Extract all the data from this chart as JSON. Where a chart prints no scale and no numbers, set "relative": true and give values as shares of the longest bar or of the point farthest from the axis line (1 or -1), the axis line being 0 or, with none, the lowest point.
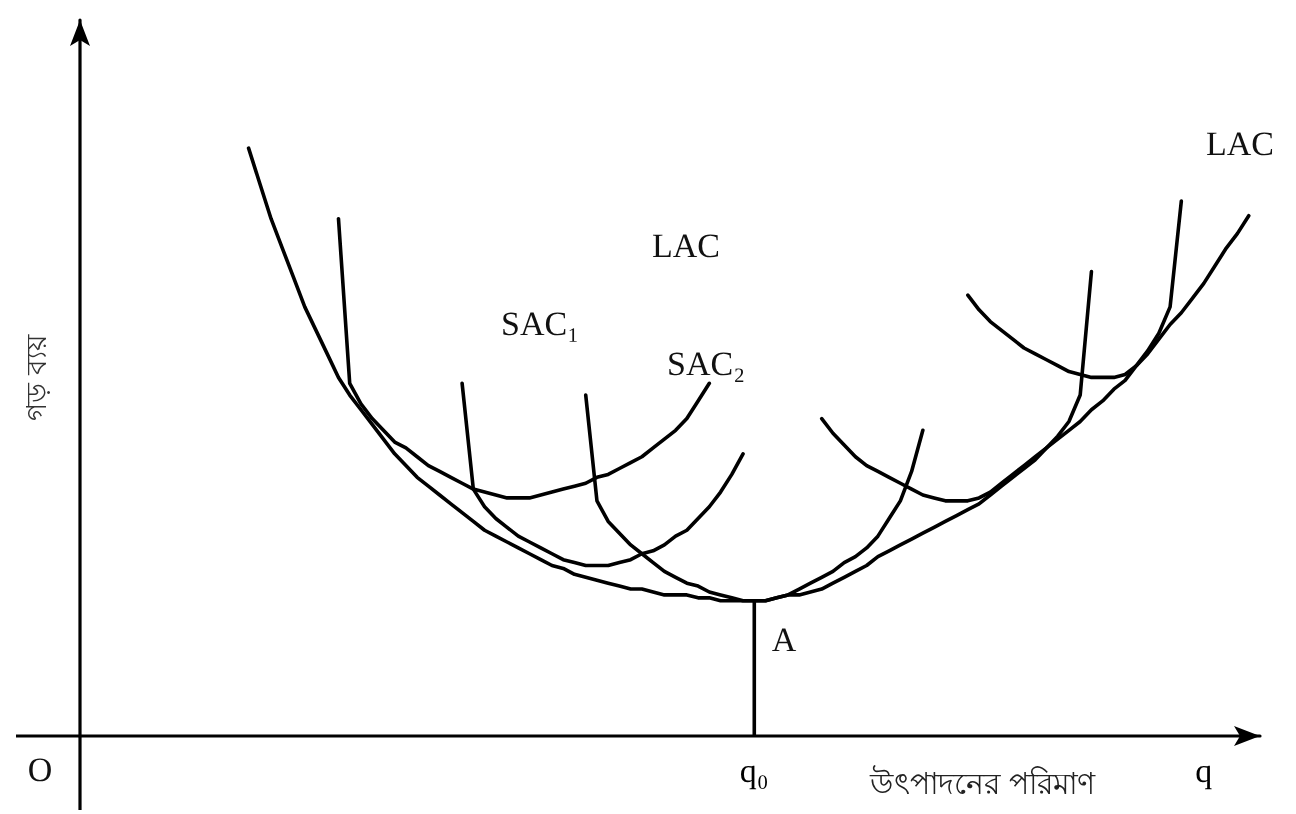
{
  "chart_data": {
    "type": "line",
    "relative": true,
    "ylabel": "গড় ব্যয়",
    "xlabel": "উৎপাদনের পরিমাণ",
    "categories": [
      null,
      null,
      null,
      null,
      null,
      null,
      null,
      null,
      null,
      null,
      null,
      null,
      null,
      null,
      null,
      null,
      null,
      null,
      null,
      null,
      null,
      null,
      null,
      null,
      null,
      null,
      null,
      null,
      null,
      null,
      null,
      null,
      null,
      null,
      null,
      null,
      null,
      null,
      null,
      null,
      null,
      null,
      null,
      null,
      null,
      null,
      null,
      null,
      null,
      null,
      null,
      null,
      null,
      null,
      null,
      null,
      null,
      null,
      null,
      null,
      "q₀",
      null,
      null,
      null,
      null,
      null,
      null,
      null,
      null,
      null,
      null,
      null,
      null,
      null,
      null,
      null,
      null,
      null,
      null,
      null,
      null,
      null,
      null,
      null,
      null,
      null,
      null,
      null,
      null,
      null,
      null,
      null,
      null,
      null,
      null,
      null,
      null,
      null,
      null,
      null,
      "q",
      null,
      null,
      null,
      null,
      null
    ],
    "annotations": [
      "SAC₁",
      "LAC",
      "SAC₂",
      "LAC",
      "A",
      "O"
    ],
    "series": [
      {
        "color": "#000000",
        "values": [
          null,
          null,
          null,
          null,
          null,
          null,
          null,
          null,
          null,
          null,
          null,
          null,
          null,
          null,
          null,
          1,
          0.94,
          0.88,
          0.83,
          0.78,
          0.73,
          0.69,
          0.65,
          0.61,
          0.58,
          0.555,
          0.53,
          0.505,
          0.48,
          0.46,
          0.44,
          0.425,
          0.41,
          0.395,
          0.38,
          0.365,
          0.35,
          0.34,
          0.33,
          0.32,
          0.31,
          0.3,
          0.29,
          0.285,
          0.275,
          0.27,
          0.265,
          0.26,
          0.255,
          0.25,
          0.25,
          0.245,
          0.24,
          0.24,
          0.24,
          0.235,
          0.235,
          0.23,
          0.23,
          0.23,
          0.23,
          0.23,
          0.235,
          0.24,
          0.24,
          0.245,
          0.25,
          0.26,
          0.27,
          0.28,
          0.29,
          0.305,
          0.315,
          0.325,
          0.335,
          0.345,
          0.355,
          0.365,
          0.375,
          0.385,
          0.395,
          0.41,
          0.425,
          0.44,
          0.455,
          0.47,
          0.49,
          0.505,
          0.52,
          0.535,
          0.555,
          0.57,
          0.59,
          0.605,
          0.63,
          0.65,
          0.675,
          0.7,
          0.72,
          0.745,
          0.77,
          0.8,
          0.83,
          0.855,
          0.885,
          null
        ]
      },
      {
        "color": "#000000",
        "values": [
          null,
          null,
          null,
          null,
          null,
          null,
          null,
          null,
          null,
          null,
          null,
          null,
          null,
          null,
          null,
          null,
          null,
          null,
          null,
          null,
          null,
          null,
          null,
          0.88,
          0.6,
          0.565,
          0.54,
          0.52,
          0.5,
          0.49,
          0.475,
          0.46,
          0.45,
          0.44,
          0.43,
          0.42,
          0.415,
          0.41,
          0.405,
          0.405,
          0.405,
          0.41,
          0.415,
          0.42,
          0.425,
          0.43,
          0.44,
          0.445,
          0.455,
          0.465,
          0.475,
          0.49,
          0.505,
          0.52,
          0.54,
          0.57,
          0.6,
          null,
          null,
          null,
          null,
          null,
          null,
          null,
          null,
          null,
          null,
          null,
          null,
          null,
          null,
          null,
          null,
          null,
          null,
          null,
          null,
          null,
          null,
          null,
          null,
          null,
          null,
          null,
          null,
          null,
          null,
          null,
          null,
          null,
          null,
          null,
          null,
          null,
          null,
          null,
          null,
          null,
          null,
          null,
          null,
          null,
          null,
          null,
          null,
          null
        ]
      },
      {
        "color": "#000000",
        "values": [
          null,
          null,
          null,
          null,
          null,
          null,
          null,
          null,
          null,
          null,
          null,
          null,
          null,
          null,
          null,
          null,
          null,
          null,
          null,
          null,
          null,
          null,
          null,
          null,
          null,
          null,
          null,
          null,
          null,
          null,
          null,
          null,
          null,
          null,
          0.6,
          0.42,
          0.39,
          0.37,
          0.355,
          0.34,
          0.33,
          0.32,
          0.31,
          0.3,
          0.295,
          0.29,
          0.29,
          0.29,
          0.295,
          0.3,
          0.31,
          0.315,
          0.325,
          0.34,
          0.35,
          0.37,
          0.39,
          0.415,
          0.445,
          0.48,
          null,
          null,
          null,
          null,
          null,
          null,
          null,
          null,
          null,
          null,
          null,
          null,
          null,
          null,
          null,
          null,
          null,
          null,
          null,
          null,
          null,
          null,
          null,
          null,
          null,
          null,
          null,
          null,
          null,
          null,
          null,
          null,
          null,
          null,
          null,
          null,
          null,
          null,
          null,
          null,
          null,
          null,
          null,
          null,
          null,
          null
        ]
      },
      {
        "color": "#000000",
        "values": [
          null,
          null,
          null,
          null,
          null,
          null,
          null,
          null,
          null,
          null,
          null,
          null,
          null,
          null,
          null,
          null,
          null,
          null,
          null,
          null,
          null,
          null,
          null,
          null,
          null,
          null,
          null,
          null,
          null,
          null,
          null,
          null,
          null,
          null,
          null,
          null,
          null,
          null,
          null,
          null,
          null,
          null,
          null,
          null,
          null,
          0.58,
          0.4,
          0.365,
          0.345,
          0.325,
          0.31,
          0.295,
          0.28,
          0.27,
          0.26,
          0.255,
          0.245,
          0.24,
          0.235,
          0.23,
          0.23,
          0.23,
          0.235,
          0.24,
          0.25,
          0.26,
          0.27,
          0.28,
          0.295,
          0.305,
          0.32,
          0.34,
          0.37,
          0.4,
          0.45,
          0.52,
          null,
          null,
          null,
          null,
          null,
          null,
          null,
          null,
          null,
          null,
          null,
          null,
          null,
          null,
          null,
          null,
          null,
          null,
          null,
          null,
          null,
          null,
          null,
          null,
          null,
          null,
          null,
          null,
          null,
          null
        ]
      },
      {
        "color": "#000000",
        "values": [
          null,
          null,
          null,
          null,
          null,
          null,
          null,
          null,
          null,
          null,
          null,
          null,
          null,
          null,
          null,
          null,
          null,
          null,
          null,
          null,
          null,
          null,
          null,
          null,
          null,
          null,
          null,
          null,
          null,
          null,
          null,
          null,
          null,
          null,
          null,
          null,
          null,
          null,
          null,
          null,
          null,
          null,
          null,
          null,
          null,
          null,
          null,
          null,
          null,
          null,
          null,
          null,
          null,
          null,
          null,
          null,
          null,
          null,
          null,
          null,
          null,
          null,
          null,
          null,
          null,
          null,
          0.54,
          0.515,
          0.495,
          0.475,
          0.46,
          0.45,
          0.44,
          0.43,
          0.42,
          0.41,
          0.405,
          0.4,
          0.4,
          0.4,
          0.405,
          0.415,
          0.43,
          0.445,
          0.46,
          0.475,
          0.49,
          0.51,
          0.535,
          0.58,
          0.79,
          null,
          null,
          null,
          null,
          null,
          null,
          null,
          null,
          null,
          null,
          null,
          null,
          null,
          null,
          null
        ]
      },
      {
        "color": "#000000",
        "values": [
          null,
          null,
          null,
          null,
          null,
          null,
          null,
          null,
          null,
          null,
          null,
          null,
          null,
          null,
          null,
          null,
          null,
          null,
          null,
          null,
          null,
          null,
          null,
          null,
          null,
          null,
          null,
          null,
          null,
          null,
          null,
          null,
          null,
          null,
          null,
          null,
          null,
          null,
          null,
          null,
          null,
          null,
          null,
          null,
          null,
          null,
          null,
          null,
          null,
          null,
          null,
          null,
          null,
          null,
          null,
          null,
          null,
          null,
          null,
          null,
          null,
          null,
          null,
          null,
          null,
          null,
          null,
          null,
          null,
          null,
          null,
          null,
          null,
          null,
          null,
          null,
          null,
          null,
          null,
          0.75,
          0.725,
          0.705,
          0.69,
          0.675,
          0.66,
          0.65,
          0.64,
          0.63,
          0.62,
          0.615,
          0.61,
          0.61,
          0.61,
          0.615,
          0.63,
          0.655,
          0.685,
          0.73,
          0.91,
          null,
          null,
          null,
          null,
          null,
          null,
          null
        ]
      },
      {
        "type": "bar",
        "color": "#000000",
        "values": [
          null,
          null,
          null,
          null,
          null,
          null,
          null,
          null,
          null,
          null,
          null,
          null,
          null,
          null,
          null,
          null,
          null,
          null,
          null,
          null,
          null,
          null,
          null,
          null,
          null,
          null,
          null,
          null,
          null,
          null,
          null,
          null,
          null,
          null,
          null,
          null,
          null,
          null,
          null,
          null,
          null,
          null,
          null,
          null,
          null,
          null,
          null,
          null,
          null,
          null,
          null,
          null,
          null,
          null,
          null,
          null,
          null,
          null,
          null,
          null,
          0.23,
          null,
          null,
          null,
          null,
          null,
          null,
          null,
          null,
          null,
          null,
          null,
          null,
          null,
          null,
          null,
          null,
          null,
          null,
          null,
          null,
          null,
          null,
          null,
          null,
          null,
          null,
          null,
          null,
          null,
          null,
          null,
          null,
          null,
          null,
          null,
          null,
          null,
          null,
          null,
          null,
          null,
          null,
          null,
          null,
          null
        ]
      }
    ]
  }
}
